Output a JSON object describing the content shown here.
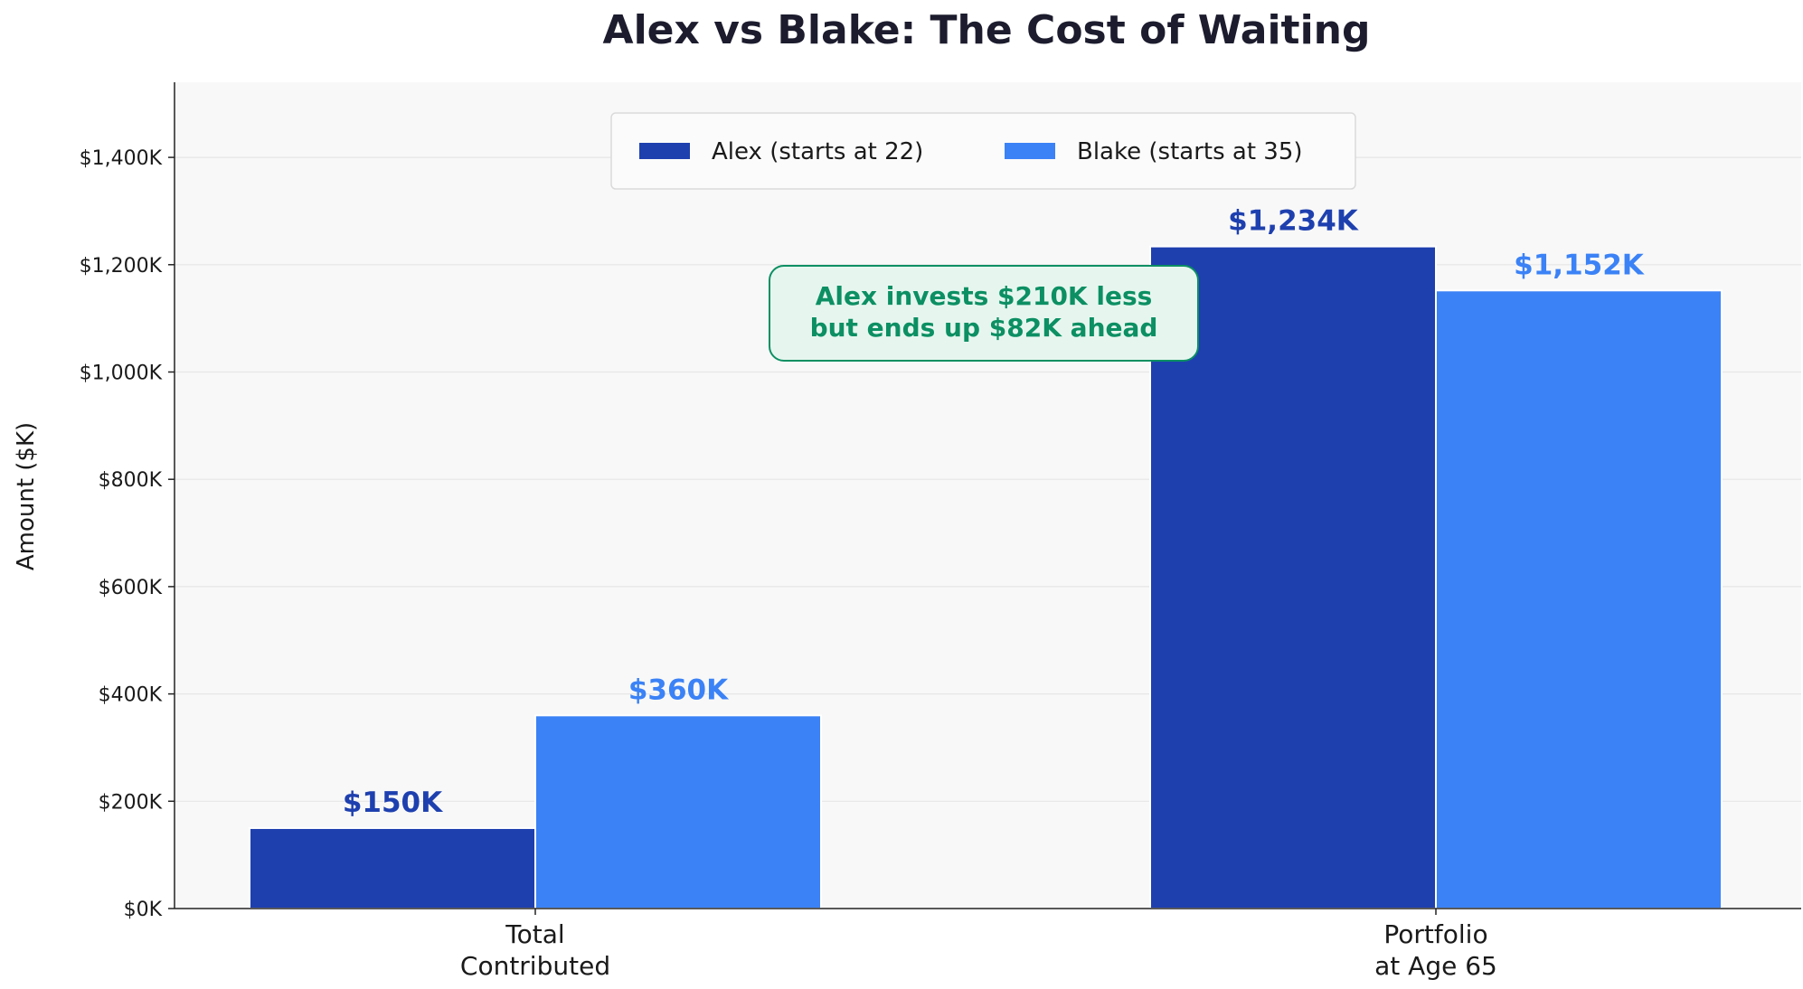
{
  "chart_data": {
    "type": "bar",
    "title": "Alex vs Blake: The Cost of Waiting",
    "xlabel": "",
    "ylabel": "Amount ($K)",
    "ylim": [
      0,
      1540
    ],
    "yticks": [
      0,
      200,
      400,
      600,
      800,
      1000,
      1200,
      1400
    ],
    "ytick_labels": [
      "$0K",
      "$200K",
      "$400K",
      "$600K",
      "$800K",
      "$1,000K",
      "$1,200K",
      "$1,400K"
    ],
    "categories": [
      [
        "Total",
        "Contributed"
      ],
      [
        "Portfolio",
        "at Age 65"
      ]
    ],
    "series": [
      {
        "name": "Alex (starts at 22)",
        "color": "#1e40af",
        "values": [
          150,
          1234
        ],
        "labels": [
          "$150K",
          "$1,234K"
        ]
      },
      {
        "name": "Blake (starts at 35)",
        "color": "#3b82f6",
        "values": [
          360,
          1152
        ],
        "labels": [
          "$360K",
          "$1,152K"
        ]
      }
    ],
    "grid": "y",
    "legend_position": "top-center",
    "annotation": {
      "lines": [
        "Alex invests $210K less",
        "but ends up $82K ahead"
      ],
      "text_color": "#0c8f63",
      "border_color": "#0c8f63",
      "fill_color": "#e6f6ef"
    },
    "plot_background": "#f8f8f8"
  }
}
